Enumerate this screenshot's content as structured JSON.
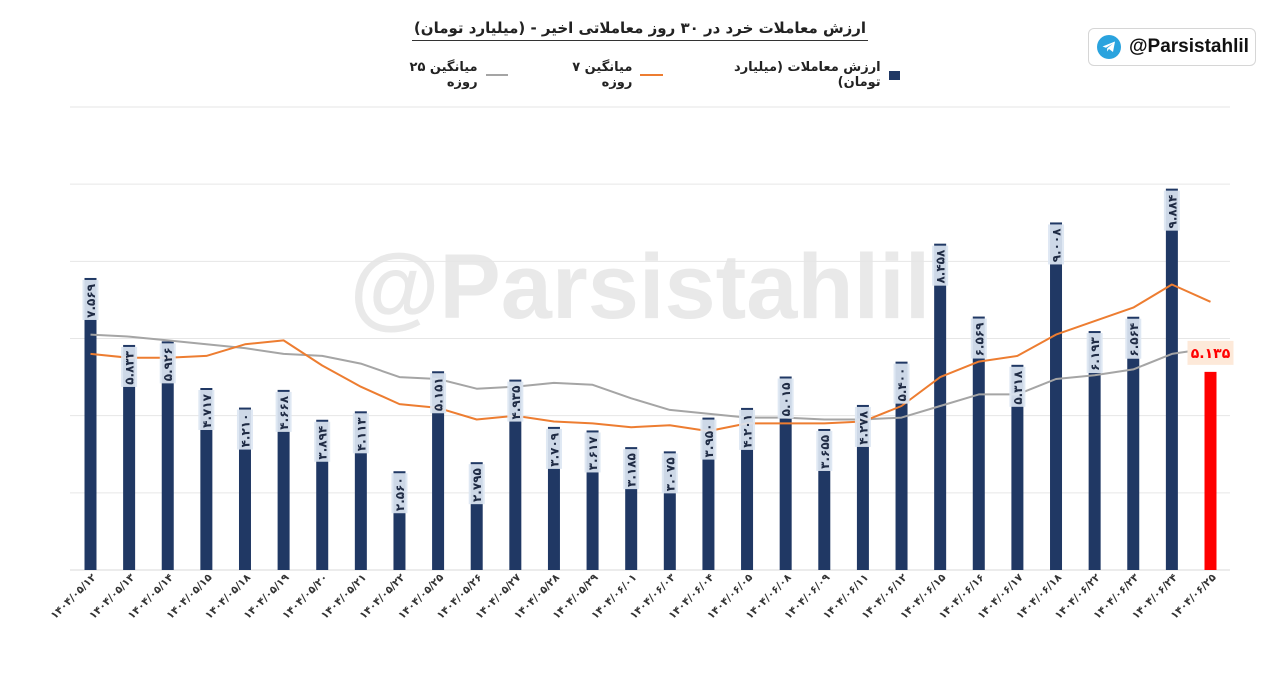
{
  "title": "ارزش معاملات خرد در ۳۰ روز معاملاتی اخیر - (میلیارد تومان)",
  "badge": {
    "handle": "@Parsistahlil",
    "icon": "telegram-icon"
  },
  "watermark": "@Parsistahlil",
  "legend": {
    "bars": "ارزش معاملات (میلیارد تومان)",
    "ma7": "میانگین ۷ روزه",
    "ma25": "میانگین ۲۵ روزه"
  },
  "colors": {
    "bar": "#203864",
    "last_bar": "#ff0000",
    "ma7": "#ed7d31",
    "ma25": "#a5a5a5",
    "grid": "#e6e6e6",
    "label_bg": "#dce6f2",
    "last_label_bg": "#fde9d9"
  },
  "chart_data": {
    "type": "bar",
    "ylim": [
      0,
      12
    ],
    "grid": true,
    "legend_position": "top",
    "categories": [
      "۱۴۰۴/۰۵/۱۲",
      "۱۴۰۴/۰۵/۱۳",
      "۱۴۰۴/۰۵/۱۴",
      "۱۴۰۴/۰۵/۱۵",
      "۱۴۰۴/۰۵/۱۸",
      "۱۴۰۴/۰۵/۱۹",
      "۱۴۰۴/۰۵/۲۰",
      "۱۴۰۴/۰۵/۲۱",
      "۱۴۰۴/۰۵/۲۲",
      "۱۴۰۴/۰۵/۲۵",
      "۱۴۰۴/۰۵/۲۶",
      "۱۴۰۴/۰۵/۲۷",
      "۱۴۰۴/۰۵/۲۸",
      "۱۴۰۴/۰۵/۲۹",
      "۱۴۰۴/۰۶/۰۱",
      "۱۴۰۴/۰۶/۰۳",
      "۱۴۰۴/۰۶/۰۴",
      "۱۴۰۴/۰۶/۰۵",
      "۱۴۰۴/۰۶/۰۸",
      "۱۴۰۴/۰۶/۰۹",
      "۱۴۰۴/۰۶/۱۱",
      "۱۴۰۴/۰۶/۱۲",
      "۱۴۰۴/۰۶/۱۵",
      "۱۴۰۴/۰۶/۱۶",
      "۱۴۰۴/۰۶/۱۷",
      "۱۴۰۴/۰۶/۱۸",
      "۱۴۰۴/۰۶/۲۲",
      "۱۴۰۴/۰۶/۲۳",
      "۱۴۰۴/۰۶/۲۴",
      "۱۴۰۴/۰۶/۲۵"
    ],
    "series": [
      {
        "name": "ارزش معاملات (میلیارد تومان)",
        "type": "bar",
        "values": [
          7.569,
          5.833,
          5.926,
          4.717,
          4.21,
          4.668,
          3.894,
          4.113,
          2.56,
          5.151,
          2.795,
          4.935,
          3.709,
          3.617,
          3.185,
          3.075,
          3.95,
          4.201,
          5.015,
          3.655,
          4.278,
          5.4,
          8.458,
          6.569,
          5.318,
          9.008,
          6.193,
          6.564,
          9.884,
          5.135
        ],
        "labels": [
          "۷.۵۶۹",
          "۵.۸۳۳",
          "۵.۹۲۶",
          "۴.۷۱۷",
          "۴.۲۱۰",
          "۴.۶۶۸",
          "۳.۸۹۴",
          "۴.۱۱۳",
          "۲.۵۶۰",
          "۵.۱۵۱",
          "۲.۷۹۵",
          "۴.۹۳۵",
          "۳.۷۰۹",
          "۳.۶۱۷",
          "۳.۱۸۵",
          "۳.۰۷۵",
          "۳.۹۵۰",
          "۴.۲۰۱",
          "۵.۰۱۵",
          "۳.۶۵۵",
          "۴.۲۷۸",
          "۵.۴۰۰",
          "۸.۴۵۸",
          "۶.۵۶۹",
          "۵.۳۱۸",
          "۹.۰۰۸",
          "۶.۱۹۳",
          "۶.۵۶۴",
          "۹.۸۸۴",
          "۵.۱۳۵"
        ]
      },
      {
        "name": "میانگین ۷ روزه",
        "type": "line",
        "values": [
          5.6,
          5.5,
          5.5,
          5.55,
          5.85,
          5.95,
          5.3,
          4.75,
          4.3,
          4.2,
          3.9,
          4.0,
          3.85,
          3.8,
          3.7,
          3.75,
          3.6,
          3.8,
          3.8,
          3.8,
          3.85,
          4.25,
          5.0,
          5.4,
          5.55,
          6.1,
          6.45,
          6.8,
          7.4,
          6.95
        ]
      },
      {
        "name": "میانگین ۲۵ روزه",
        "type": "line",
        "values": [
          6.1,
          6.05,
          5.95,
          5.85,
          5.75,
          5.6,
          5.55,
          5.35,
          5.0,
          4.95,
          4.7,
          4.75,
          4.85,
          4.8,
          4.45,
          4.15,
          4.05,
          3.95,
          3.95,
          3.9,
          3.9,
          3.95,
          4.25,
          4.55,
          4.55,
          4.95,
          5.05,
          5.2,
          5.6,
          5.75
        ]
      }
    ]
  }
}
